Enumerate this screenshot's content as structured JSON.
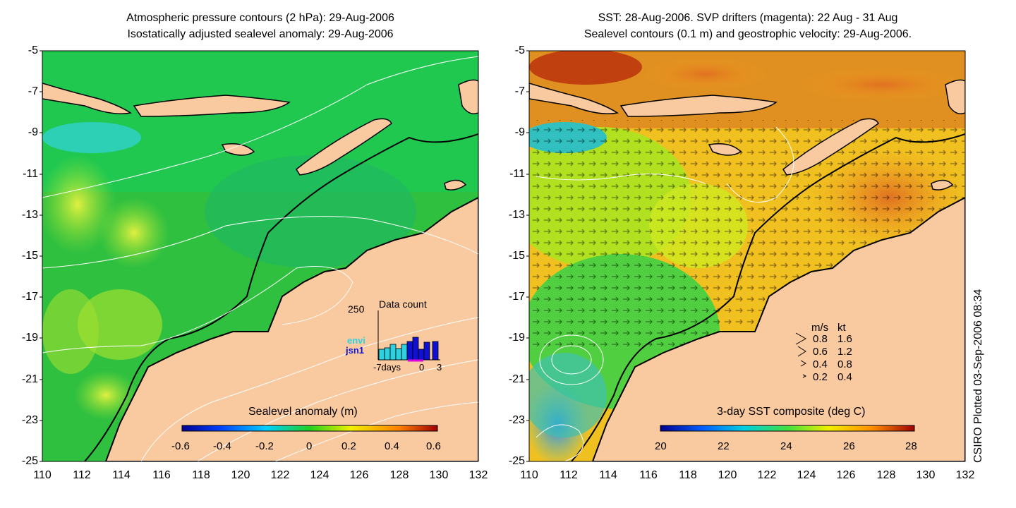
{
  "left_panel": {
    "title_line1": "Atmospheric pressure contours (2 hPa): 29-Aug-2006",
    "title_line2": "Isostatically adjusted sealevel anomaly: 29-Aug-2006",
    "colorbar_label": "Sealevel anomaly (m)",
    "colorbar_ticks": [
      "-0.6",
      "-0.4",
      "-0.2",
      "0",
      "0.2",
      "0.4",
      "0.6"
    ],
    "inset": {
      "title": "Data count",
      "y_max_label": "250",
      "x_labels": [
        "-7days",
        "0",
        "3"
      ],
      "series": [
        "envi",
        "jsn1"
      ]
    }
  },
  "right_panel": {
    "title_line1": "SST: 28-Aug-2006. SVP drifters (magenta): 22 Aug - 31 Aug",
    "title_line2": "Sealevel contours (0.1 m) and geostrophic velocity: 29-Aug-2006.",
    "colorbar_label": "3-day SST composite (deg C)",
    "colorbar_ticks": [
      "20",
      "22",
      "24",
      "26",
      "28"
    ],
    "velocity_legend": {
      "header_ms": "m/s",
      "header_kt": "kt",
      "rows": [
        {
          "ms": "0.8",
          "kt": "1.6"
        },
        {
          "ms": "0.6",
          "kt": "1.2"
        },
        {
          "ms": "0.4",
          "kt": "0.8"
        },
        {
          "ms": "0.2",
          "kt": "0.4"
        }
      ]
    }
  },
  "axes": {
    "lat_ticks": [
      "-5",
      "-7",
      "-9",
      "-11",
      "-13",
      "-15",
      "-17",
      "-19",
      "-21",
      "-23",
      "-25"
    ],
    "lon_ticks": [
      "110",
      "112",
      "114",
      "116",
      "118",
      "120",
      "122",
      "124",
      "126",
      "128",
      "130",
      "132"
    ]
  },
  "credit": "CSIRO Plotted 03-Sep-2006 08:34",
  "colors": {
    "land": "#f9c9a0",
    "coast": "#000000",
    "contour": "#ffffff",
    "envi": "#2fd0e0",
    "jsn1": "#1010d0",
    "drifter": "#e000e0"
  }
}
